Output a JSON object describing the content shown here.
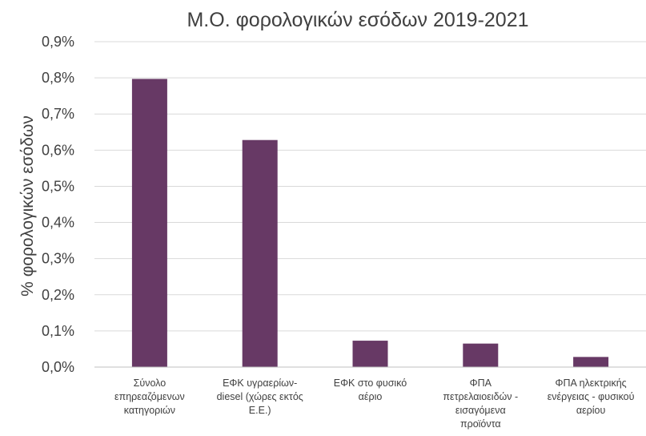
{
  "chart_data": {
    "type": "bar",
    "title": "Μ.Ο. φορολογικών εσόδων 2019-2021",
    "xlabel": "",
    "ylabel": "% φορολογικών εσόδων",
    "ylim": [
      0,
      0.9
    ],
    "y_ticks": [
      "0,0%",
      "0,1%",
      "0,2%",
      "0,3%",
      "0,4%",
      "0,5%",
      "0,6%",
      "0,7%",
      "0,8%",
      "0,9%"
    ],
    "grid": true,
    "legend": "none",
    "bar_color": "#673965",
    "categories": [
      [
        "Σύνολο",
        "επηρεαζόμενων",
        "κατηγοριών"
      ],
      [
        "ΕΦΚ υγραερίων-",
        "diesel (χώρες εκτός",
        "Ε.Ε.)"
      ],
      [
        "ΕΦΚ στο φυσικό",
        "αέριο"
      ],
      [
        "ΦΠΑ",
        "πετρελαιοειδών -",
        "εισαγόμενα",
        "προϊόντα"
      ],
      [
        "ΦΠΑ ηλεκτρικής",
        "ενέργειας - φυσικού",
        "αερίου"
      ]
    ],
    "values": [
      0.797,
      0.628,
      0.073,
      0.065,
      0.028
    ]
  }
}
